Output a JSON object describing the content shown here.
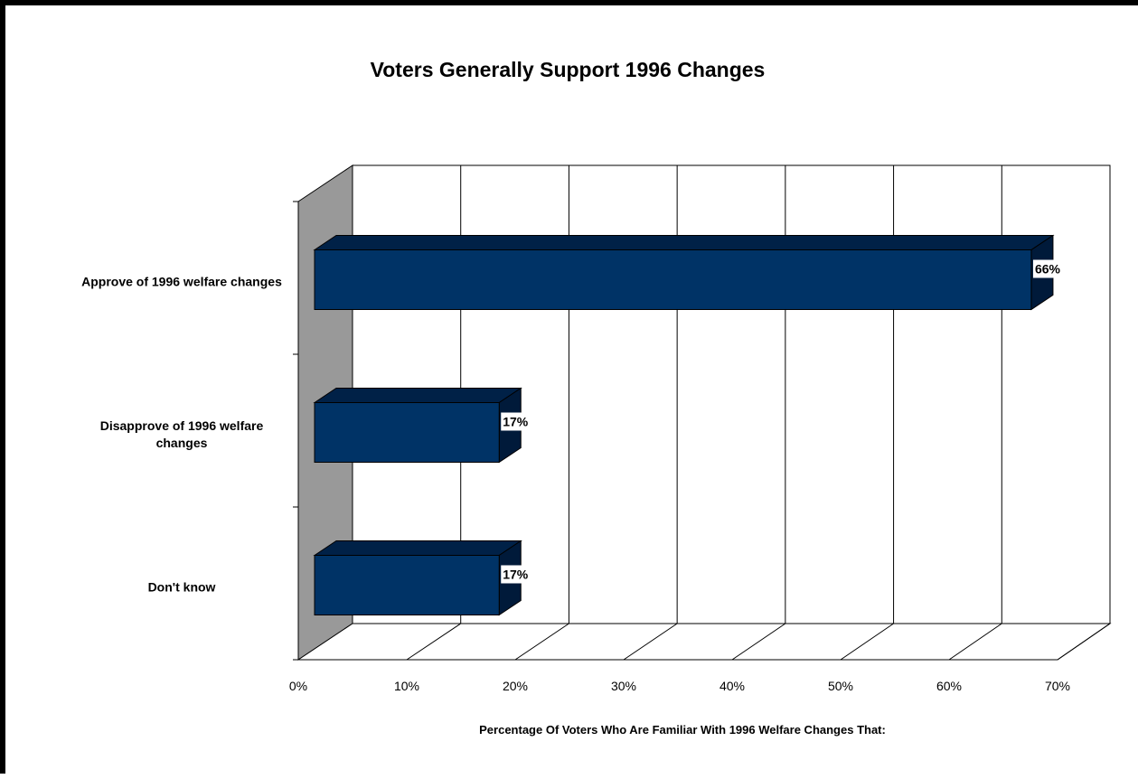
{
  "colors": {
    "bar_front": "#003366",
    "bar_top": "#002147",
    "bar_side": "#001a3a",
    "side_wall": "#999999",
    "label_bg": "#ffffff"
  },
  "chart_data": {
    "type": "bar",
    "orientation": "horizontal",
    "style": "3d",
    "title": "Voters Generally Support 1996 Changes",
    "xlabel": "Percentage Of Voters Who Are Familiar With 1996 Welfare Changes That:",
    "ylabel": "",
    "xlim": [
      0,
      70
    ],
    "xticks": [
      "0%",
      "10%",
      "20%",
      "30%",
      "40%",
      "50%",
      "60%",
      "70%"
    ],
    "categories": [
      [
        "Approve of 1996 welfare changes"
      ],
      [
        "Disapprove of 1996 welfare",
        "changes"
      ],
      [
        "Don't know"
      ]
    ],
    "values": [
      66,
      17,
      17
    ],
    "value_labels": [
      "66%",
      "17%",
      "17%"
    ],
    "grid": true,
    "legend": "none"
  }
}
